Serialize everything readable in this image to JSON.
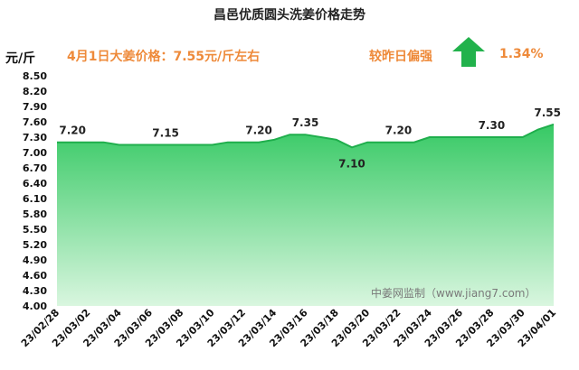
{
  "header": {
    "title": "昌邑优质圆头洗姜价格走势",
    "unit": "元/斤",
    "date_price": "4月1日大姜价格：7.55元/斤左右",
    "compare_label": "较昨日偏强",
    "compare_value": "1.34%",
    "trend_icon": "up-arrow-icon"
  },
  "watermark": "中姜网监制（www.jiang7.com）",
  "colors": {
    "area_top": "#36c964",
    "area_bottom": "#d9f6df",
    "line": "#1fae4c",
    "accent": "#ee8a3a",
    "arrow": "#22b24c"
  },
  "chart_data": {
    "type": "area",
    "title": "昌邑优质圆头洗姜价格走势",
    "ylabel": "元/斤",
    "ylim": [
      4.0,
      8.5
    ],
    "yticks": [
      4.0,
      4.3,
      4.6,
      4.9,
      5.2,
      5.5,
      5.8,
      6.1,
      6.4,
      6.7,
      7.0,
      7.3,
      7.6,
      7.9,
      8.2,
      8.5
    ],
    "ytick_labels": [
      "4.00",
      "4.30",
      "4.60",
      "4.90",
      "5.20",
      "5.50",
      "5.80",
      "6.10",
      "6.40",
      "6.70",
      "7.00",
      "7.30",
      "7.60",
      "7.90",
      "8.20",
      "8.50"
    ],
    "x": [
      "23/02/28",
      "23/03/01",
      "23/03/02",
      "23/03/03",
      "23/03/04",
      "23/03/05",
      "23/03/06",
      "23/03/07",
      "23/03/08",
      "23/03/09",
      "23/03/10",
      "23/03/11",
      "23/03/12",
      "23/03/13",
      "23/03/14",
      "23/03/15",
      "23/03/16",
      "23/03/17",
      "23/03/18",
      "23/03/19",
      "23/03/20",
      "23/03/21",
      "23/03/22",
      "23/03/23",
      "23/03/24",
      "23/03/25",
      "23/03/26",
      "23/03/27",
      "23/03/28",
      "23/03/29",
      "23/03/30",
      "23/03/31",
      "23/04/01"
    ],
    "values": [
      7.2,
      7.2,
      7.2,
      7.2,
      7.15,
      7.15,
      7.15,
      7.15,
      7.15,
      7.15,
      7.15,
      7.2,
      7.2,
      7.2,
      7.25,
      7.35,
      7.35,
      7.3,
      7.25,
      7.1,
      7.2,
      7.2,
      7.2,
      7.2,
      7.3,
      7.3,
      7.3,
      7.3,
      7.3,
      7.3,
      7.3,
      7.45,
      7.55
    ],
    "xtick_labels": [
      "23/02/28",
      "23/03/02",
      "23/03/04",
      "23/03/06",
      "23/03/08",
      "23/03/10",
      "23/03/12",
      "23/03/14",
      "23/03/16",
      "23/03/18",
      "23/03/20",
      "23/03/22",
      "23/03/24",
      "23/03/26",
      "23/03/28",
      "23/03/30",
      "23/04/01"
    ],
    "data_labels": [
      {
        "x": "23/03/01",
        "text": "7.20"
      },
      {
        "x": "23/03/07",
        "text": "7.15"
      },
      {
        "x": "23/03/13",
        "text": "7.20"
      },
      {
        "x": "23/03/16",
        "text": "7.35"
      },
      {
        "x": "23/03/19",
        "text": "7.10"
      },
      {
        "x": "23/03/22",
        "text": "7.20"
      },
      {
        "x": "23/03/28",
        "text": "7.30"
      },
      {
        "x": "23/04/01",
        "text": "7.55"
      }
    ],
    "grid": false,
    "legend": "none"
  }
}
